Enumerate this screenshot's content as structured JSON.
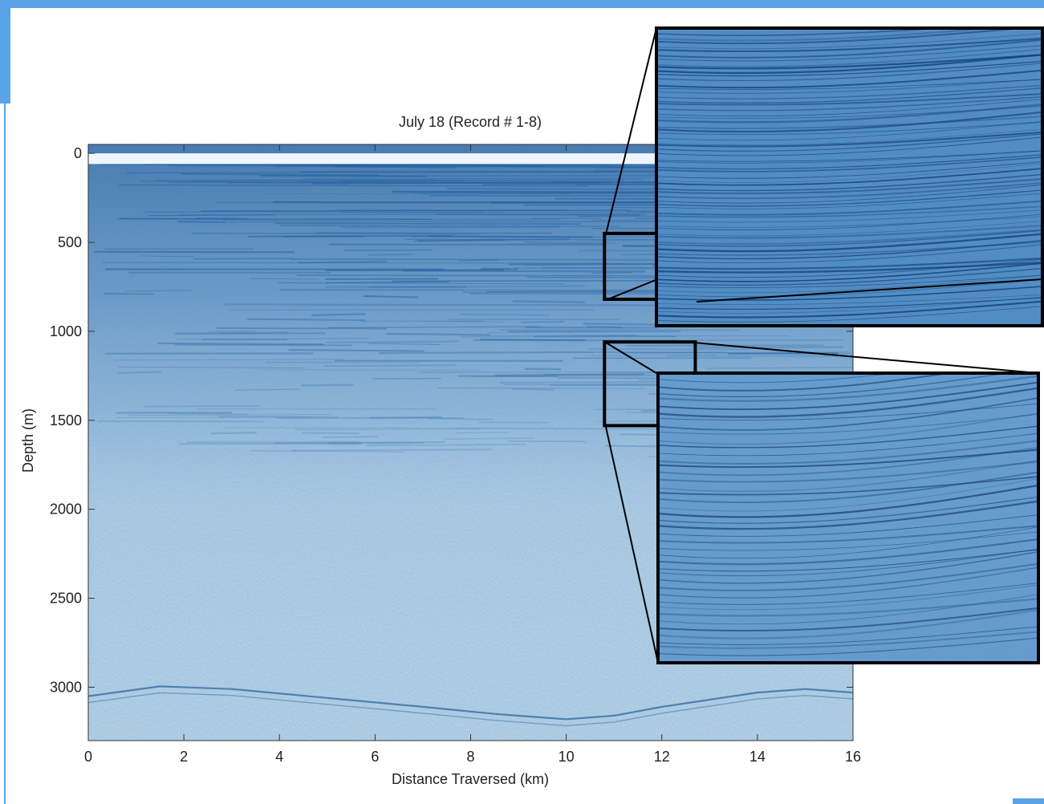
{
  "colors": {
    "accent": "#5aa3e6",
    "radargram_base": "#bfd6e8",
    "reflector": "#1f5c9c",
    "frame": "#000000"
  },
  "chart_data": {
    "type": "heatmap",
    "title": "July 18 (Record # 1-8)",
    "xlabel": "Distance Traversed (km)",
    "ylabel": "Depth (m)",
    "xlim": [
      0,
      16
    ],
    "ylim": [
      3300,
      -50
    ],
    "y_inverted": true,
    "x_ticks": [
      "0",
      "2",
      "4",
      "6",
      "8",
      "10",
      "12",
      "14",
      "16"
    ],
    "y_ticks": [
      "0",
      "500",
      "1000",
      "1500",
      "2000",
      "2500",
      "3000"
    ],
    "grid": false,
    "colormap": "white-to-blue",
    "surface_depth_m": 60,
    "bed_profile": {
      "x": [
        0,
        1.5,
        3,
        5,
        7,
        8.5,
        10,
        11,
        12,
        13,
        14,
        15,
        16
      ],
      "depth": [
        3050,
        2995,
        3010,
        3060,
        3110,
        3150,
        3180,
        3160,
        3110,
        3070,
        3030,
        3010,
        3030
      ]
    },
    "inset_regions": [
      {
        "name": "upper",
        "x_range": [
          10.8,
          12.0
        ],
        "depth_range": [
          450,
          820
        ]
      },
      {
        "name": "lower",
        "x_range": [
          10.8,
          12.7
        ],
        "depth_range": [
          1060,
          1530
        ]
      }
    ]
  }
}
